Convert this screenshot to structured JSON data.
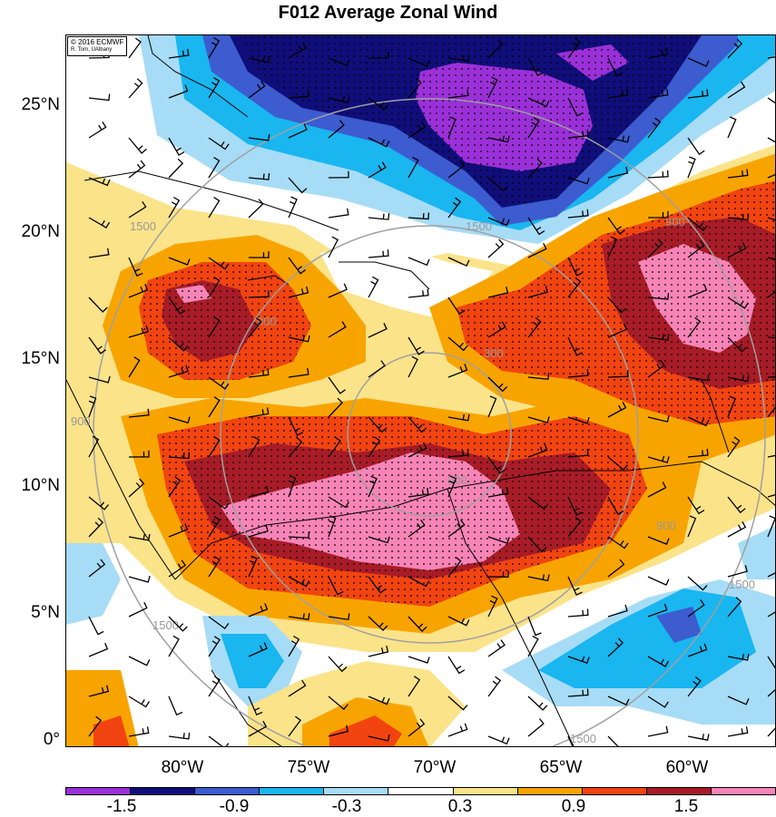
{
  "title": "F012 Average Zonal Wind",
  "credit": {
    "line1": "© 2016 ECMWF",
    "line2": "R. Torn, UAlbany"
  },
  "y_axis_labels": [
    "25°N",
    "20°N",
    "15°N",
    "10°N",
    "5°N",
    "0°"
  ],
  "x_axis_labels": [
    "80°W",
    "75°W",
    "70°W",
    "65°W",
    "60°W"
  ],
  "colorbar": {
    "colors": [
      "#9b30d9",
      "#100e7a",
      "#3c5ccf",
      "#19b6f0",
      "#a7dcf6",
      "#ffffff",
      "#fbe38a",
      "#f8a400",
      "#f24410",
      "#a81c27",
      "#f784b6"
    ],
    "labels": [
      "-1.5",
      "-0.9",
      "-0.3",
      "0.3",
      "0.9",
      "1.5"
    ]
  },
  "contour_labels": [
    "1500",
    "1500",
    "900",
    "900",
    "300",
    "900",
    "900",
    "1500",
    "1500",
    "1500",
    "900"
  ],
  "map": {
    "region": "Caribbean Sea and northern South America",
    "lat_range": [
      0,
      28
    ],
    "lon_range": [
      -85,
      -57
    ],
    "field": "zonal wind anomaly",
    "stippling": "significant regions",
    "wind_barbs": true,
    "range_rings": true
  }
}
